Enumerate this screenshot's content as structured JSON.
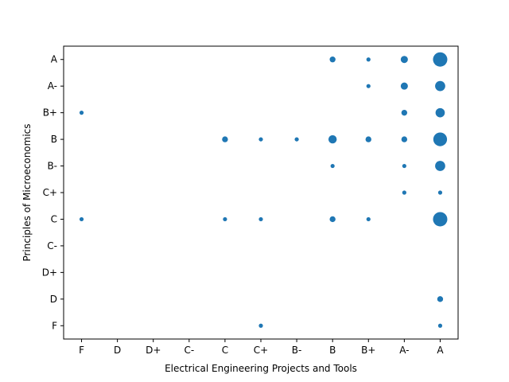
{
  "chart_data": {
    "type": "scatter",
    "title": "",
    "xlabel": "Electrical Engineering Projects and Tools",
    "ylabel": "Principles of Microeconomics",
    "x_categories": [
      "F",
      "D",
      "D+",
      "C-",
      "C",
      "C+",
      "B-",
      "B",
      "B+",
      "A-",
      "A"
    ],
    "y_categories": [
      "F",
      "D",
      "D+",
      "C-",
      "C",
      "C+",
      "B-",
      "B",
      "B+",
      "A-",
      "A"
    ],
    "grid": false,
    "marker_color": "#1f77b4",
    "points": [
      {
        "x": "F",
        "y": "B+",
        "count": 1
      },
      {
        "x": "F",
        "y": "C",
        "count": 1
      },
      {
        "x": "C",
        "y": "B",
        "count": 2
      },
      {
        "x": "C",
        "y": "C",
        "count": 1
      },
      {
        "x": "C+",
        "y": "B",
        "count": 1
      },
      {
        "x": "C+",
        "y": "C",
        "count": 1
      },
      {
        "x": "C+",
        "y": "F",
        "count": 1
      },
      {
        "x": "B-",
        "y": "B",
        "count": 1
      },
      {
        "x": "B",
        "y": "A",
        "count": 2
      },
      {
        "x": "B",
        "y": "B",
        "count": 4
      },
      {
        "x": "B",
        "y": "B-",
        "count": 1
      },
      {
        "x": "B",
        "y": "C",
        "count": 2
      },
      {
        "x": "B+",
        "y": "A",
        "count": 1
      },
      {
        "x": "B+",
        "y": "A-",
        "count": 1
      },
      {
        "x": "B+",
        "y": "B",
        "count": 2
      },
      {
        "x": "B+",
        "y": "C",
        "count": 1
      },
      {
        "x": "A-",
        "y": "A",
        "count": 3
      },
      {
        "x": "A-",
        "y": "A-",
        "count": 3
      },
      {
        "x": "A-",
        "y": "B+",
        "count": 2
      },
      {
        "x": "A-",
        "y": "B",
        "count": 2
      },
      {
        "x": "A-",
        "y": "B-",
        "count": 1
      },
      {
        "x": "A-",
        "y": "C+",
        "count": 1
      },
      {
        "x": "A",
        "y": "A",
        "count": 12
      },
      {
        "x": "A",
        "y": "A-",
        "count": 6
      },
      {
        "x": "A",
        "y": "B+",
        "count": 5
      },
      {
        "x": "A",
        "y": "B",
        "count": 11
      },
      {
        "x": "A",
        "y": "B-",
        "count": 6
      },
      {
        "x": "A",
        "y": "C+",
        "count": 1
      },
      {
        "x": "A",
        "y": "C",
        "count": 12
      },
      {
        "x": "A",
        "y": "D",
        "count": 2
      },
      {
        "x": "A",
        "y": "F",
        "count": 1
      }
    ]
  }
}
